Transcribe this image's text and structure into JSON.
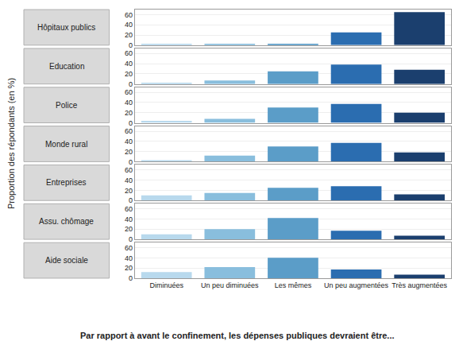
{
  "chart_data": {
    "type": "bar",
    "xlabel": "Par rapport à avant le confinement, les dépenses publiques devraient être...",
    "ylabel": "Proportion des répondants (en %)",
    "categories": [
      "Diminuées",
      "Un peu diminuées",
      "Les mêmes",
      "Un peu augmentées",
      "Très augmentées"
    ],
    "colors": [
      "#b8d9ed",
      "#89bedd",
      "#5b9dc8",
      "#2b6db0",
      "#1b3f6e"
    ],
    "series": [
      {
        "name": "Hôpitaux publics",
        "values": [
          2,
          2,
          3,
          25,
          65
        ]
      },
      {
        "name": "Education",
        "values": [
          2,
          7,
          25,
          38,
          28
        ]
      },
      {
        "name": "Police",
        "values": [
          4,
          8,
          30,
          37,
          20
        ]
      },
      {
        "name": "Monde rural",
        "values": [
          2,
          12,
          30,
          37,
          18
        ]
      },
      {
        "name": "Entreprises",
        "values": [
          10,
          15,
          25,
          28,
          12
        ]
      },
      {
        "name": "Assu. chômage",
        "values": [
          10,
          20,
          42,
          17,
          7
        ]
      },
      {
        "name": "Aide sociale",
        "values": [
          12,
          22,
          40,
          17,
          7
        ]
      }
    ],
    "ylim": [
      0,
      70
    ],
    "yticks": [
      0,
      20,
      40,
      60
    ],
    "grid": true
  }
}
